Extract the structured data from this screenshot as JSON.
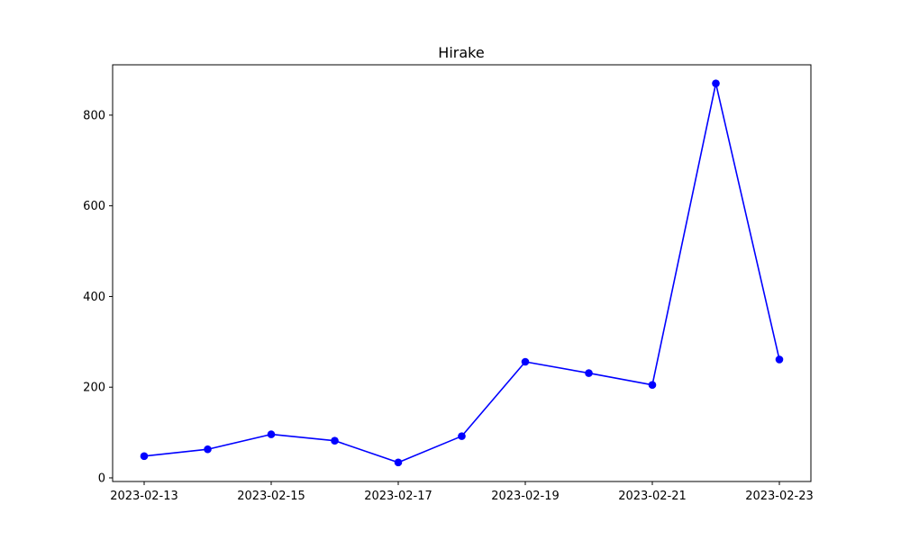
{
  "chart_data": {
    "type": "line",
    "title": "Hirake",
    "xlabel": "",
    "ylabel": "",
    "x": [
      "2023-02-13",
      "2023-02-14",
      "2023-02-15",
      "2023-02-16",
      "2023-02-17",
      "2023-02-18",
      "2023-02-19",
      "2023-02-20",
      "2023-02-21",
      "2023-02-22",
      "2023-02-23"
    ],
    "series": [
      {
        "values": [
          48,
          63,
          96,
          82,
          34,
          92,
          256,
          231,
          205,
          870,
          261
        ]
      }
    ],
    "xticks": [
      "2023-02-13",
      "2023-02-15",
      "2023-02-17",
      "2023-02-19",
      "2023-02-21",
      "2023-02-23"
    ],
    "yticks": [
      0,
      200,
      400,
      600,
      800
    ],
    "ylim": [
      -8,
      911
    ],
    "grid": false,
    "colors": {
      "line": "#0000ff",
      "marker": "#0000ff",
      "axes": "#000000"
    }
  }
}
